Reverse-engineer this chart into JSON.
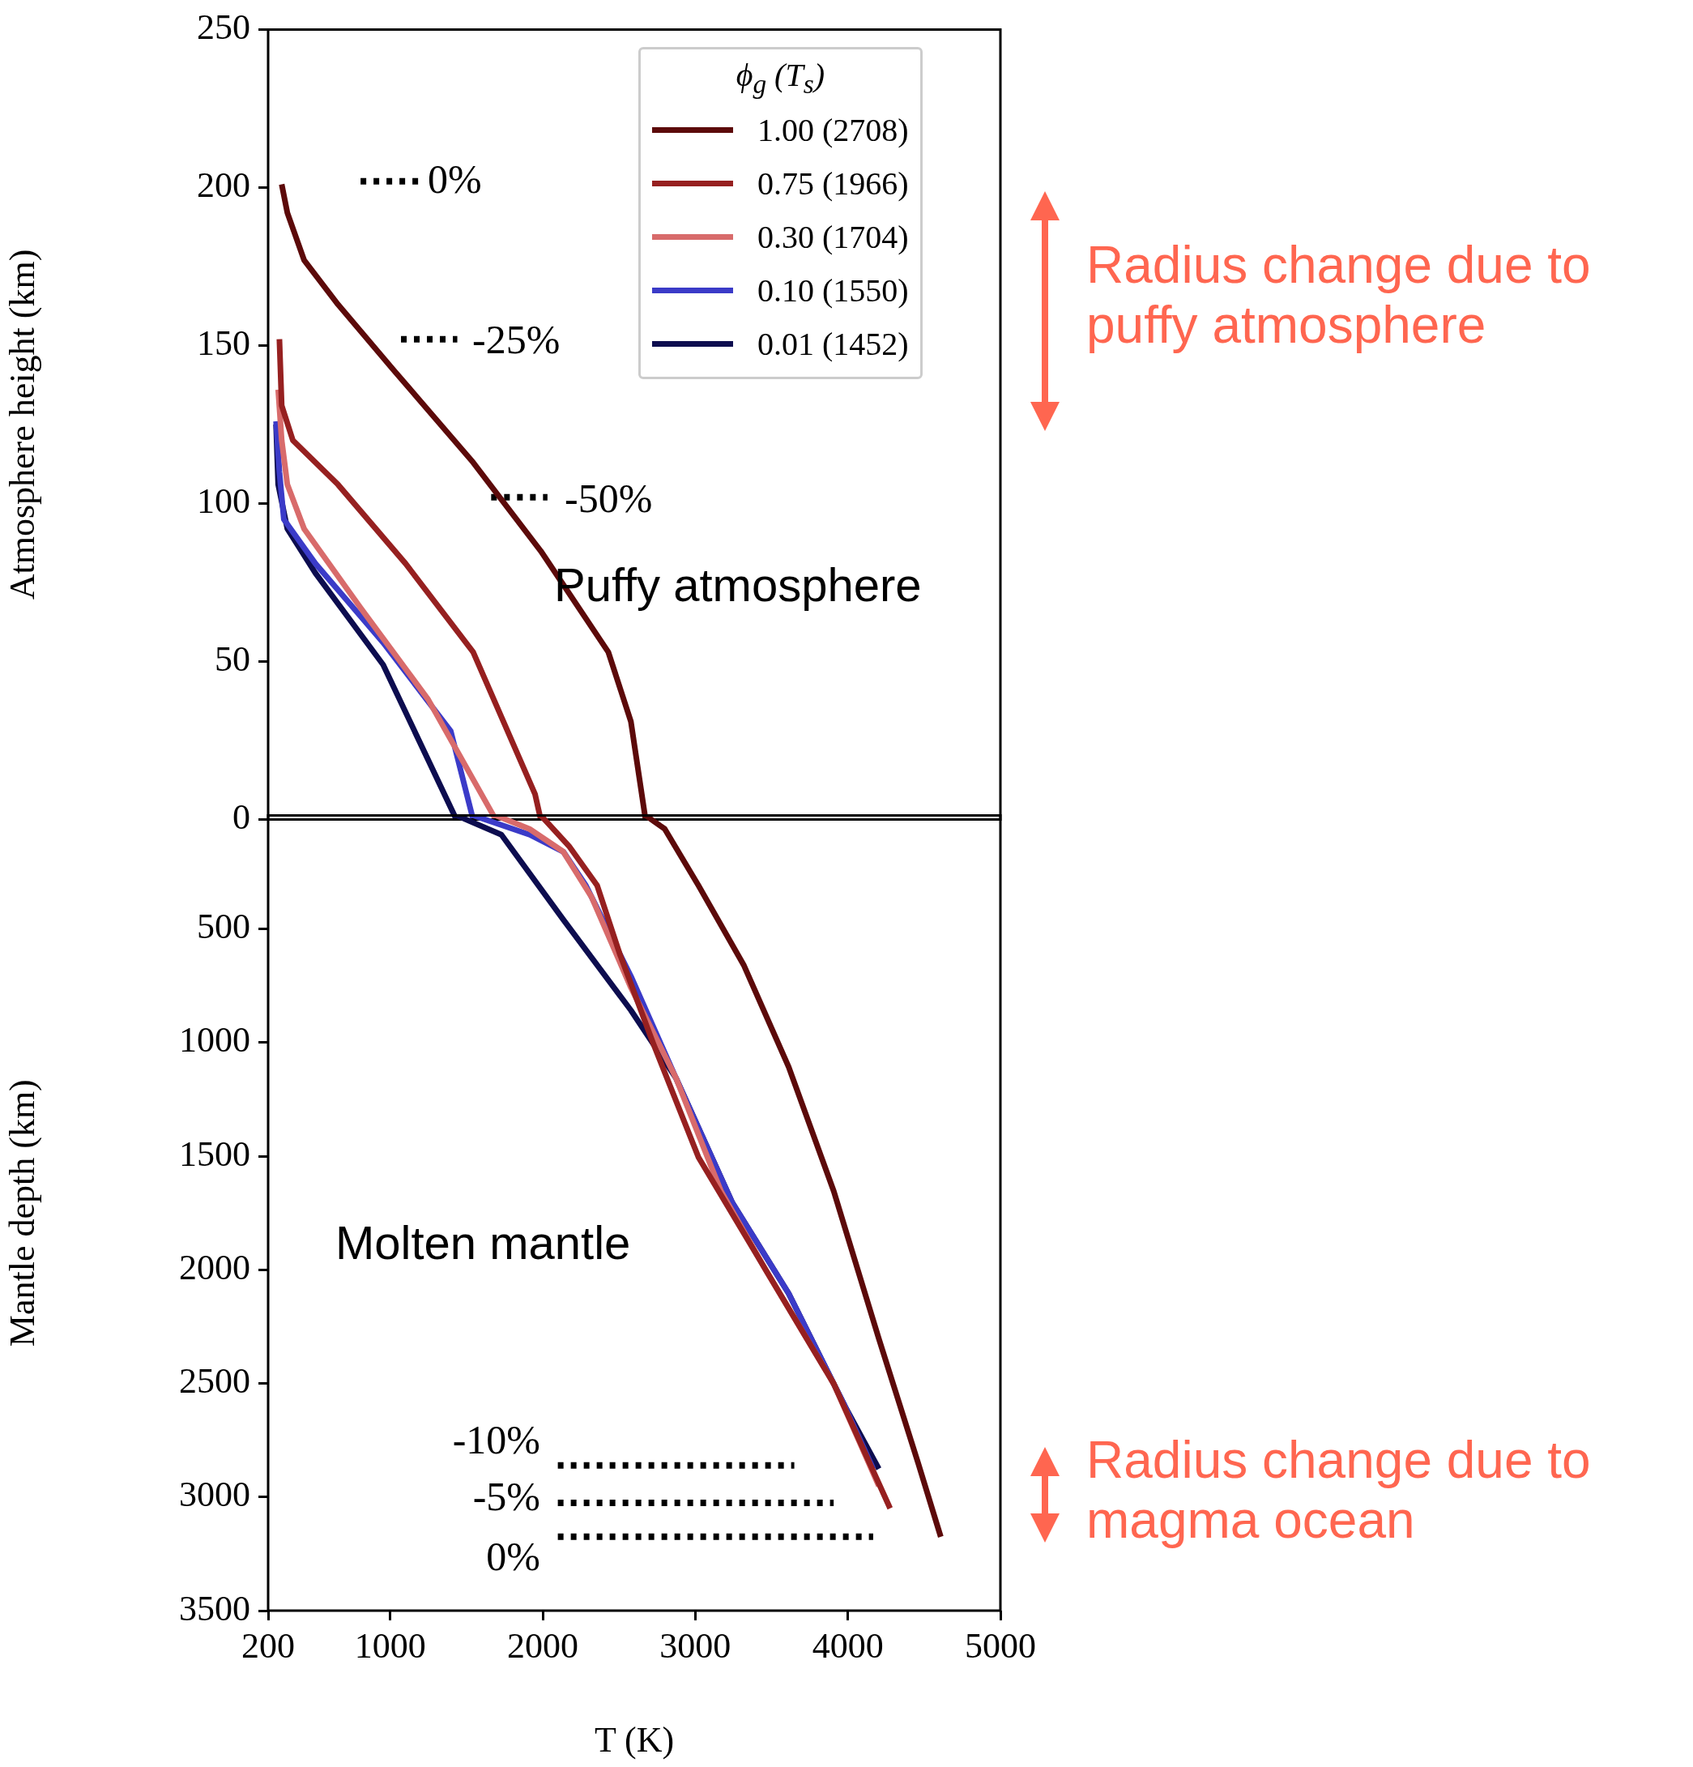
{
  "chart_data": [
    {
      "type": "line",
      "ylabel": "Atmosphere height (km)",
      "xlim": [
        200,
        5000
      ],
      "xticks": [
        200,
        1000,
        2000,
        3000,
        4000,
        5000
      ],
      "ylim": [
        0,
        250
      ],
      "yticks": [
        0,
        50,
        100,
        150,
        200,
        250
      ],
      "tick_labels": "y",
      "legend": "top right",
      "legend_title": "ϕ$_{g}$ (T$_{s}$)",
      "annotations": [
        "Puffy atmosphere",
        "Radius change due to puffy atmosphere",
        "0%",
        "-25%",
        "-50%"
      ],
      "series": [
        {
          "name": "1.00 (2708)",
          "color": "#5c0a0a",
          "x": [
            289,
            326,
            436,
            658,
            1027,
            1544,
            1987,
            2430,
            2578,
            2674
          ],
          "values": [
            201,
            192,
            177,
            163,
            142,
            113,
            85,
            53,
            31,
            0
          ]
        },
        {
          "name": "0.75 (1966)",
          "color": "#962020",
          "x": [
            274,
            289,
            362,
            658,
            1101,
            1544,
            1950,
            1987
          ],
          "values": [
            152,
            131,
            120,
            106,
            81,
            53,
            8,
            0
          ]
        },
        {
          "name": "0.30 (1704)",
          "color": "#d86b6b",
          "x": [
            266,
            289,
            326,
            436,
            806,
            1249,
            1692
          ],
          "values": [
            136,
            120,
            106,
            92,
            67,
            38,
            0
          ]
        },
        {
          "name": "0.10 (1550)",
          "color": "#3b3bc8",
          "x": [
            252,
            274,
            303,
            510,
            954,
            1397,
            1544
          ],
          "values": [
            126,
            110,
            95,
            81,
            56,
            28,
            0
          ]
        },
        {
          "name": "0.01 (1452)",
          "color": "#0d0d4f",
          "x": [
            252,
            266,
            326,
            510,
            954,
            1434
          ],
          "values": [
            125,
            106,
            92,
            78,
            49,
            0
          ]
        },
        {
          "type": "line",
          "line_style": "dotted",
          "color": "#000000",
          "x": [
            806,
            1190
          ],
          "values": [
            202,
            202
          ]
        },
        {
          "type": "line",
          "line_style": "dotted",
          "color": "#000000",
          "x": [
            1071,
            1440
          ],
          "values": [
            152,
            152
          ]
        },
        {
          "type": "line",
          "line_style": "dotted",
          "color": "#000000",
          "x": [
            1662,
            2031
          ],
          "values": [
            102,
            102
          ]
        }
      ]
    },
    {
      "type": "line",
      "xlabel": "T (K)",
      "ylabel": "Mantle depth (km)",
      "xlim": [
        200,
        5000
      ],
      "xticks": [
        200,
        1000,
        2000,
        3000,
        4000,
        5000
      ],
      "ylim": [
        3500,
        0
      ],
      "yticks": [
        500,
        1000,
        1500,
        2000,
        2500,
        3000,
        3500
      ],
      "annotations": [
        "Molten mantle",
        "Radius change due to magma ocean",
        "-10%",
        "-5%",
        "0%"
      ],
      "series": [
        {
          "color": "#5c0a0a",
          "x": [
            2674,
            2800,
            3021,
            3317,
            3612,
            3908,
            4203,
            4461,
            4609
          ],
          "values": [
            0,
            60,
            309,
            658,
            1107,
            1655,
            2303,
            2851,
            3175
          ]
        },
        {
          "color": "#962020",
          "x": [
            1987,
            2172,
            2357,
            2504,
            2726,
            3021,
            3465,
            3908,
            4277
          ],
          "values": [
            0,
            135,
            309,
            608,
            1007,
            1505,
            2004,
            2502,
            3050
          ]
        },
        {
          "color": "#d86b6b",
          "x": [
            1692,
            1914,
            2135,
            2320,
            2578,
            2874,
            3169,
            3465,
            3908,
            4203
          ],
          "values": [
            0,
            60,
            160,
            359,
            758,
            1157,
            1655,
            2004,
            2502,
            2951
          ]
        },
        {
          "color": "#3b3bc8",
          "x": [
            1544,
            1914,
            2135,
            2283,
            2578,
            2874,
            3243,
            3612,
            3982,
            4166
          ],
          "values": [
            0,
            85,
            160,
            309,
            708,
            1157,
            1705,
            2104,
            2602,
            2876
          ]
        },
        {
          "color": "#0d0d4f",
          "x": [
            1434,
            1729,
            2135,
            2578,
            2874,
            3243,
            3612,
            3982,
            4203
          ],
          "values": [
            0,
            85,
            459,
            858,
            1157,
            1705,
            2104,
            2602,
            2876
          ]
        },
        {
          "type": "line",
          "line_style": "dotted",
          "color": "#000000",
          "x": [
            2099,
            3649
          ],
          "values": [
            2861,
            2861
          ]
        },
        {
          "type": "line",
          "line_style": "dotted",
          "color": "#000000",
          "x": [
            2099,
            3907
          ],
          "values": [
            3026,
            3026
          ]
        },
        {
          "type": "line",
          "line_style": "dotted",
          "color": "#000000",
          "x": [
            2099,
            4166
          ],
          "values": [
            3175,
            3175
          ]
        }
      ]
    }
  ]
}
